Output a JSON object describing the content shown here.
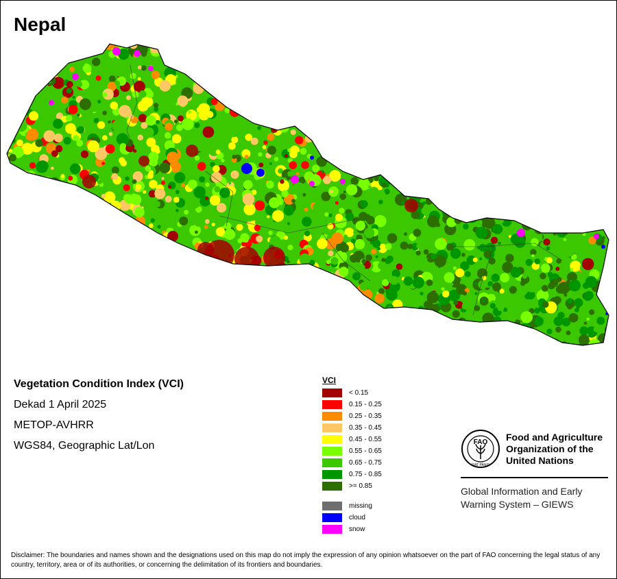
{
  "map": {
    "title": "Nepal"
  },
  "info": {
    "index_name": "Vegetation Condition Index (VCI)",
    "period": "Dekad 1 April 2025",
    "sensor": "METOP-AVHRR",
    "projection": "WGS84, Geographic Lat/Lon"
  },
  "legend": {
    "title": "VCI",
    "classes": [
      {
        "label": "< 0.15",
        "color": "#a50000"
      },
      {
        "label": "0.15 - 0.25",
        "color": "#ff0000"
      },
      {
        "label": "0.25 - 0.35",
        "color": "#ff8c00"
      },
      {
        "label": "0.35 - 0.45",
        "color": "#ffc864"
      },
      {
        "label": "0.45 - 0.55",
        "color": "#ffff00"
      },
      {
        "label": "0.55 - 0.65",
        "color": "#78ff00"
      },
      {
        "label": "0.65 - 0.75",
        "color": "#3cc800"
      },
      {
        "label": "0.75 - 0.85",
        "color": "#009600"
      },
      {
        "label": ">= 0.85",
        "color": "#2d6e00"
      }
    ],
    "other_classes": [
      {
        "label": "missing",
        "color": "#6e6e6e"
      },
      {
        "label": "cloud",
        "color": "#0000ff"
      },
      {
        "label": "snow",
        "color": "#ff00ff"
      }
    ]
  },
  "organization": {
    "name_line1": "Food and Agriculture",
    "name_line2": "Organization of the",
    "name_line3": "United Nations",
    "logo_letters": "FAO",
    "logo_motto": "FIAT PANIS",
    "system_line1": "Global Information and Early",
    "system_line2": "Warning System – GIEWS"
  },
  "disclaimer": "Disclaimer: The boundaries and names shown and the designations used on this map do not imply the expression of any opinion whatsoever on the part of FAO concerning the legal status of any country, territory, area or of its authorities, or concerning the delimitation of its frontiers and boundaries."
}
